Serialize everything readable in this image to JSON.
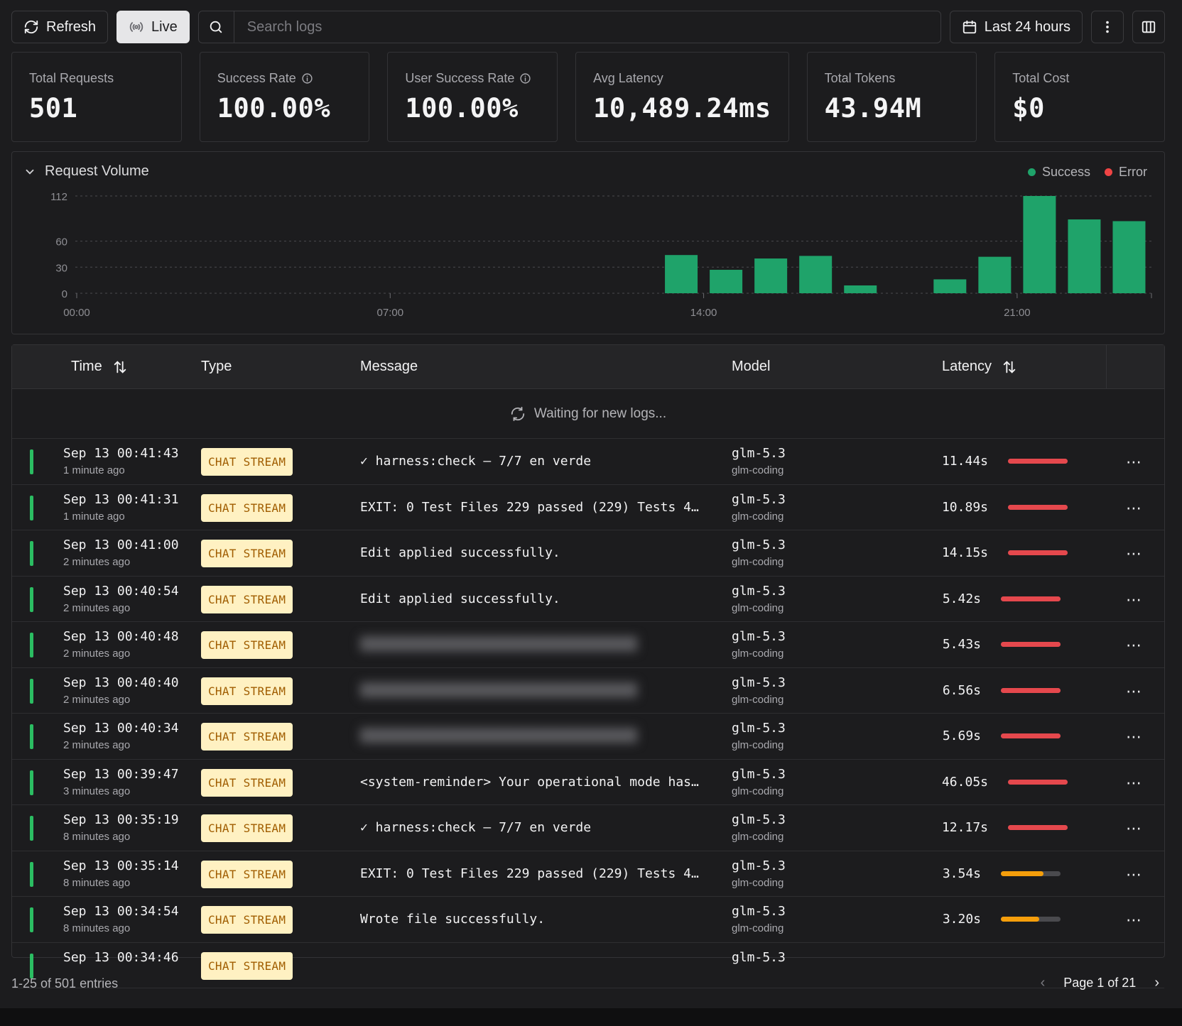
{
  "toolbar": {
    "refresh_label": "Refresh",
    "live_label": "Live",
    "search_placeholder": "Search logs",
    "range_label": "Last 24 hours"
  },
  "stats": [
    {
      "label": "Total Requests",
      "value": "501",
      "info": false
    },
    {
      "label": "Success Rate",
      "value": "100.00%",
      "info": true
    },
    {
      "label": "User Success Rate",
      "value": "100.00%",
      "info": true
    },
    {
      "label": "Avg Latency",
      "value": "10,489.24ms",
      "info": false
    },
    {
      "label": "Total Tokens",
      "value": "43.94M",
      "info": false
    },
    {
      "label": "Total Cost",
      "value": "$0",
      "info": false
    }
  ],
  "chart": {
    "title": "Request Volume",
    "legend": [
      {
        "name": "Success",
        "color": "#1fa36a"
      },
      {
        "name": "Error",
        "color": "#ef4444"
      }
    ]
  },
  "chart_data": {
    "type": "bar",
    "title": "Request Volume",
    "xlabel": "",
    "ylabel": "",
    "x_ticks": [
      "00:00",
      "07:00",
      "14:00",
      "21:00"
    ],
    "y_ticks": [
      0,
      30,
      60,
      112
    ],
    "ylim": [
      0,
      112
    ],
    "grid": true,
    "legend_position": "top-right",
    "series": [
      {
        "name": "Success",
        "color": "#1fa36a",
        "points": [
          {
            "hour": 14,
            "value": 44
          },
          {
            "hour": 15,
            "value": 27
          },
          {
            "hour": 16,
            "value": 40
          },
          {
            "hour": 17,
            "value": 43
          },
          {
            "hour": 18,
            "value": 9
          },
          {
            "hour": 20,
            "value": 16
          },
          {
            "hour": 21,
            "value": 42
          },
          {
            "hour": 22,
            "value": 112
          },
          {
            "hour": 23,
            "value": 85
          },
          {
            "hour": 24,
            "value": 83
          }
        ]
      },
      {
        "name": "Error",
        "color": "#ef4444",
        "points": []
      }
    ]
  },
  "table": {
    "columns": {
      "time": "Time",
      "type": "Type",
      "message": "Message",
      "model": "Model",
      "latency": "Latency"
    },
    "waiting_text": "Waiting for new logs...",
    "rows": [
      {
        "time": "Sep 13 00:41:43",
        "ago": "1 minute ago",
        "type": "CHAT STREAM",
        "message": "✓ harness:check — 7/7 en verde",
        "blurred": false,
        "model": "glm-5.3",
        "provider": "glm-coding",
        "latency": "11.44s",
        "latency_fraction": 1.0,
        "latency_color": "#e5484d"
      },
      {
        "time": "Sep 13 00:41:31",
        "ago": "1 minute ago",
        "type": "CHAT STREAM",
        "message": "EXIT: 0 Test Files 229 passed (229) Tests 4…",
        "blurred": false,
        "model": "glm-5.3",
        "provider": "glm-coding",
        "latency": "10.89s",
        "latency_fraction": 1.0,
        "latency_color": "#e5484d"
      },
      {
        "time": "Sep 13 00:41:00",
        "ago": "2 minutes ago",
        "type": "CHAT STREAM",
        "message": "Edit applied successfully.",
        "blurred": false,
        "model": "glm-5.3",
        "provider": "glm-coding",
        "latency": "14.15s",
        "latency_fraction": 1.0,
        "latency_color": "#e5484d"
      },
      {
        "time": "Sep 13 00:40:54",
        "ago": "2 minutes ago",
        "type": "CHAT STREAM",
        "message": "Edit applied successfully.",
        "blurred": false,
        "model": "glm-5.3",
        "provider": "glm-coding",
        "latency": "5.42s",
        "latency_fraction": 1.0,
        "latency_color": "#e5484d"
      },
      {
        "time": "Sep 13 00:40:48",
        "ago": "2 minutes ago",
        "type": "CHAT STREAM",
        "message": "",
        "blurred": true,
        "model": "glm-5.3",
        "provider": "glm-coding",
        "latency": "5.43s",
        "latency_fraction": 1.0,
        "latency_color": "#e5484d"
      },
      {
        "time": "Sep 13 00:40:40",
        "ago": "2 minutes ago",
        "type": "CHAT STREAM",
        "message": "",
        "blurred": true,
        "model": "glm-5.3",
        "provider": "glm-coding",
        "latency": "6.56s",
        "latency_fraction": 1.0,
        "latency_color": "#e5484d"
      },
      {
        "time": "Sep 13 00:40:34",
        "ago": "2 minutes ago",
        "type": "CHAT STREAM",
        "message": "",
        "blurred": true,
        "model": "glm-5.3",
        "provider": "glm-coding",
        "latency": "5.69s",
        "latency_fraction": 1.0,
        "latency_color": "#e5484d"
      },
      {
        "time": "Sep 13 00:39:47",
        "ago": "3 minutes ago",
        "type": "CHAT STREAM",
        "message": "<system-reminder> Your operational mode has…",
        "blurred": false,
        "model": "glm-5.3",
        "provider": "glm-coding",
        "latency": "46.05s",
        "latency_fraction": 1.0,
        "latency_color": "#e5484d"
      },
      {
        "time": "Sep 13 00:35:19",
        "ago": "8 minutes ago",
        "type": "CHAT STREAM",
        "message": "✓ harness:check — 7/7 en verde",
        "blurred": false,
        "model": "glm-5.3",
        "provider": "glm-coding",
        "latency": "12.17s",
        "latency_fraction": 1.0,
        "latency_color": "#e5484d"
      },
      {
        "time": "Sep 13 00:35:14",
        "ago": "8 minutes ago",
        "type": "CHAT STREAM",
        "message": "EXIT: 0 Test Files 229 passed (229) Tests 4…",
        "blurred": false,
        "model": "glm-5.3",
        "provider": "glm-coding",
        "latency": "3.54s",
        "latency_fraction": 0.71,
        "latency_color": "#f59e0b"
      },
      {
        "time": "Sep 13 00:34:54",
        "ago": "8 minutes ago",
        "type": "CHAT STREAM",
        "message": "Wrote file successfully.",
        "blurred": false,
        "model": "glm-5.3",
        "provider": "glm-coding",
        "latency": "3.20s",
        "latency_fraction": 0.64,
        "latency_color": "#f59e0b"
      },
      {
        "time": "Sep 13 00:34:46",
        "ago": "",
        "type": "CHAT STREAM",
        "message": "",
        "blurred": false,
        "model": "glm-5.3",
        "provider": "",
        "latency": "",
        "latency_fraction": 0,
        "latency_color": "#e5484d"
      }
    ]
  },
  "footer": {
    "entries_text": "1-25 of 501 entries",
    "page_text": "Page 1 of 21"
  }
}
